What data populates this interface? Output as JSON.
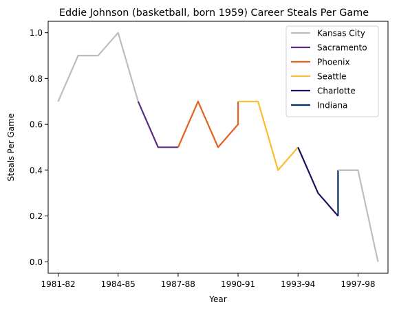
{
  "chart_data": {
    "type": "line",
    "title": "Eddie Johnson (basketball, born 1959) Career Steals Per Game",
    "xlabel": "Year",
    "ylabel": "Steals Per Game",
    "x_ticks": [
      {
        "label": "1981-82",
        "index": 0
      },
      {
        "label": "1984-85",
        "index": 3
      },
      {
        "label": "1987-88",
        "index": 6
      },
      {
        "label": "1990-91",
        "index": 9
      },
      {
        "label": "1993-94",
        "index": 12
      },
      {
        "label": "1997-98",
        "index": 15
      }
    ],
    "y_ticks": [
      "0.0",
      "0.2",
      "0.4",
      "0.6",
      "0.8",
      "1.0"
    ],
    "xlim": [
      -0.5,
      16.5
    ],
    "ylim": [
      -0.05,
      1.05
    ],
    "grid": false,
    "legend_position": "top-right",
    "series": [
      {
        "name": "Kansas City",
        "color": "#bdbdbd",
        "x": [
          0,
          1,
          2,
          3,
          4
        ],
        "y": [
          0.7,
          0.9,
          0.9,
          1.0,
          0.7
        ]
      },
      {
        "name": "Sacramento",
        "color": "#5a2d81",
        "x": [
          4,
          5,
          6
        ],
        "y": [
          0.7,
          0.5,
          0.5
        ]
      },
      {
        "name": "Phoenix",
        "color": "#e56020",
        "x": [
          6,
          7,
          8,
          9,
          9
        ],
        "y": [
          0.5,
          0.7,
          0.5,
          0.6,
          0.7
        ]
      },
      {
        "name": "Seattle",
        "color": "#fdbb30",
        "x": [
          9,
          10,
          11,
          12
        ],
        "y": [
          0.7,
          0.7,
          0.4,
          0.5
        ]
      },
      {
        "name": "Charlotte",
        "color": "#1d1160",
        "x": [
          12,
          13,
          14
        ],
        "y": [
          0.5,
          0.3,
          0.2
        ]
      },
      {
        "name": "Indiana",
        "color": "#002d62",
        "x": [
          14,
          14
        ],
        "y": [
          0.2,
          0.4
        ]
      },
      {
        "name": "",
        "color": "#bdbdbd",
        "x": [
          14,
          15,
          16
        ],
        "y": [
          0.4,
          0.4,
          0.0
        ]
      }
    ]
  }
}
